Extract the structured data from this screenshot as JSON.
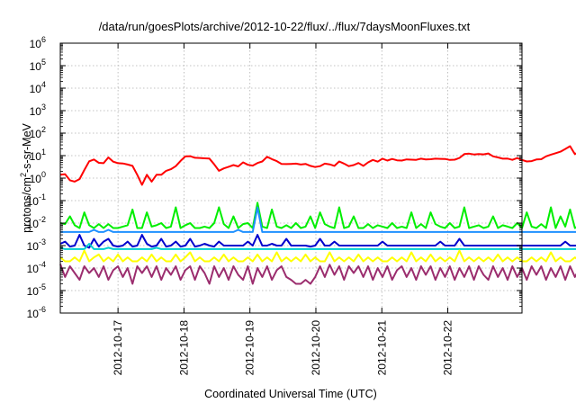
{
  "chart_data": {
    "type": "line",
    "title": "/data/run/goesPlots/archive/2012-10-22/flux/../flux/7daysMoonFluxes.txt",
    "xlabel": "Coordinated Universal Time (UTC)",
    "ylabel_parts": [
      "protons/cm",
      "2",
      "-s-sr-MeV"
    ],
    "y_scale": "log",
    "ylim": [
      1e-06,
      1000000.0
    ],
    "y_ticks": [
      {
        "base": "10",
        "exp": "-6"
      },
      {
        "base": "10",
        "exp": "-5"
      },
      {
        "base": "10",
        "exp": "-4"
      },
      {
        "base": "10",
        "exp": "-3"
      },
      {
        "base": "10",
        "exp": "-2"
      },
      {
        "base": "10",
        "exp": "-1"
      },
      {
        "base": "10",
        "exp": "0"
      },
      {
        "base": "10",
        "exp": "1"
      },
      {
        "base": "10",
        "exp": "2"
      },
      {
        "base": "10",
        "exp": "3"
      },
      {
        "base": "10",
        "exp": "4"
      },
      {
        "base": "10",
        "exp": "5"
      },
      {
        "base": "10",
        "exp": "6"
      }
    ],
    "x_range": [
      "2012-10-16 03:00",
      "2012-10-23 03:00"
    ],
    "x_ticks": [
      "2012-10-17",
      "2012-10-18",
      "2012-10-19",
      "2012-10-20",
      "2012-10-21",
      "2012-10-22"
    ],
    "grid": true,
    "legend": "none",
    "x_start": "2012-10-16 03:00",
    "x_step_hours": 1.75,
    "series": [
      {
        "color": "#ff0000",
        "values": [
          1.4,
          1.5,
          0.8,
          0.7,
          0.9,
          2.3,
          5.6,
          6.7,
          4.8,
          4.6,
          8.3,
          5.4,
          4.6,
          4.5,
          4.0,
          3.5,
          1.4,
          0.5,
          1.4,
          0.7,
          1.4,
          1.4,
          2.1,
          2.5,
          3.4,
          5.8,
          9.2,
          9.5,
          8.0,
          7.9,
          7.6,
          7.4,
          4.1,
          2.1,
          2.7,
          3.2,
          3.8,
          3.3,
          5.0,
          3.9,
          3.6,
          4.7,
          5.5,
          8.9,
          7.0,
          5.7,
          4.3,
          4.2,
          4.3,
          4.4,
          4.0,
          4.3,
          3.5,
          3.1,
          3.4,
          4.4,
          4.1,
          3.5,
          5.5,
          4.4,
          3.4,
          3.8,
          4.7,
          3.5,
          5.0,
          6.4,
          5.4,
          7.3,
          6.0,
          7.1,
          6.2,
          6.0,
          6.8,
          6.6,
          6.5,
          7.3,
          6.8,
          6.9,
          7.3,
          7.2,
          7.1,
          6.4,
          6.6,
          7.9,
          11.7,
          12.2,
          11.3,
          11.7,
          11.4,
          12.5,
          9.3,
          8.3,
          7.3,
          7.4,
          6.5,
          7.8,
          6.4,
          5.5,
          5.7,
          6.7,
          6.9,
          9.3,
          11.1,
          12.8,
          15.0,
          19.8,
          26.2,
          11.6,
          16.2,
          10.5,
          8.6,
          7.1,
          6.0,
          4.8,
          5.5,
          4.9,
          8.8,
          7.0,
          6.9,
          7.7,
          10.9,
          9.7,
          8.5,
          12.3,
          11.7,
          21.2,
          15.4,
          19.2,
          27.5,
          19.1,
          18.7,
          17.0,
          20.0,
          8.8
        ]
      },
      {
        "color": "#00ee00",
        "values": [
          0.01,
          0.009,
          0.02,
          0.008,
          0.006,
          0.03,
          0.008,
          0.006,
          0.009,
          0.006,
          0.009,
          0.006,
          0.006,
          0.007,
          0.008,
          0.04,
          0.006,
          0.006,
          0.03,
          0.007,
          0.008,
          0.01,
          0.006,
          0.007,
          0.05,
          0.006,
          0.008,
          0.01,
          0.006,
          0.006,
          0.007,
          0.006,
          0.01,
          0.05,
          0.009,
          0.006,
          0.02,
          0.006,
          0.009,
          0.01,
          0.006,
          0.08,
          0.007,
          0.006,
          0.04,
          0.007,
          0.006,
          0.008,
          0.006,
          0.01,
          0.006,
          0.007,
          0.02,
          0.006,
          0.03,
          0.009,
          0.007,
          0.006,
          0.05,
          0.006,
          0.007,
          0.02,
          0.006,
          0.006,
          0.009,
          0.006,
          0.008,
          0.007,
          0.006,
          0.01,
          0.006,
          0.007,
          0.006,
          0.03,
          0.006,
          0.009,
          0.006,
          0.03,
          0.009,
          0.007,
          0.006,
          0.01,
          0.006,
          0.007,
          0.05,
          0.006,
          0.007,
          0.008,
          0.006,
          0.007,
          0.02,
          0.006,
          0.008,
          0.007,
          0.006,
          0.01,
          0.006,
          0.03,
          0.007,
          0.006,
          0.009,
          0.006,
          0.05,
          0.006,
          0.02,
          0.007,
          0.04,
          0.006,
          0.008,
          0.006,
          0.009,
          0.006,
          0.01,
          0.006,
          0.007,
          0.009,
          0.007,
          0.009,
          0.008,
          0.03,
          0.008,
          0.006,
          0.01,
          0.008,
          0.02,
          0.006,
          0.008,
          0.009,
          0.05,
          0.007,
          0.02,
          0.01,
          0.006,
          0.04,
          0.006,
          0.02
        ]
      },
      {
        "color": "#1e90ff",
        "values": [
          0.004,
          0.004,
          0.004,
          0.004,
          0.004,
          0.004,
          0.004,
          0.005,
          0.004,
          0.004,
          0.005,
          0.004,
          0.004,
          0.004,
          0.004,
          0.004,
          0.004,
          0.004,
          0.004,
          0.004,
          0.004,
          0.004,
          0.004,
          0.004,
          0.004,
          0.004,
          0.004,
          0.004,
          0.004,
          0.004,
          0.004,
          0.004,
          0.004,
          0.004,
          0.004,
          0.004,
          0.004,
          0.005,
          0.004,
          0.004,
          0.004,
          0.05,
          0.004,
          0.004,
          0.004,
          0.004,
          0.004,
          0.004,
          0.004,
          0.004,
          0.004,
          0.004,
          0.004,
          0.004,
          0.004,
          0.004,
          0.004,
          0.004,
          0.004,
          0.004,
          0.004,
          0.004,
          0.004,
          0.004,
          0.004,
          0.004,
          0.004,
          0.004,
          0.004,
          0.004,
          0.004,
          0.004,
          0.004,
          0.004,
          0.004,
          0.004,
          0.004,
          0.004,
          0.004,
          0.004,
          0.004,
          0.004,
          0.004,
          0.004,
          0.004,
          0.004,
          0.004,
          0.004,
          0.004,
          0.004,
          0.004,
          0.004,
          0.004,
          0.004,
          0.004,
          0.004,
          0.004,
          0.004,
          0.004,
          0.004,
          0.004,
          0.004,
          0.004,
          0.004,
          0.004,
          0.004,
          0.004,
          0.004,
          0.004,
          0.004,
          0.004,
          0.004,
          0.004,
          0.004,
          0.004,
          0.005,
          0.004,
          0.004,
          0.004,
          0.004,
          0.004,
          0.004,
          0.004,
          0.004,
          0.004,
          0.004,
          0.004,
          0.004,
          0.004,
          0.004,
          0.004,
          0.004,
          0.004,
          0.004,
          0.004,
          0.004
        ]
      },
      {
        "color": "#0000cd",
        "values": [
          0.0012,
          0.0015,
          0.0009,
          0.001,
          0.003,
          0.001,
          0.0008,
          0.002,
          0.0009,
          0.0015,
          0.002,
          0.001,
          0.0009,
          0.001,
          0.0015,
          0.0009,
          0.001,
          0.003,
          0.0012,
          0.0009,
          0.001,
          0.002,
          0.0009,
          0.001,
          0.0015,
          0.0009,
          0.001,
          0.002,
          0.0009,
          0.001,
          0.0012,
          0.001,
          0.0009,
          0.0015,
          0.001,
          0.001,
          0.001,
          0.001,
          0.001,
          0.0015,
          0.001,
          0.003,
          0.001,
          0.001,
          0.0012,
          0.001,
          0.001,
          0.002,
          0.001,
          0.001,
          0.001,
          0.001,
          0.0009,
          0.001,
          0.002,
          0.001,
          0.001,
          0.0015,
          0.001,
          0.001,
          0.001,
          0.001,
          0.001,
          0.001,
          0.001,
          0.001,
          0.001,
          0.0015,
          0.001,
          0.001,
          0.001,
          0.001,
          0.001,
          0.001,
          0.001,
          0.001,
          0.001,
          0.001,
          0.001,
          0.0015,
          0.001,
          0.001,
          0.001,
          0.002,
          0.001,
          0.001,
          0.001,
          0.001,
          0.001,
          0.001,
          0.001,
          0.001,
          0.001,
          0.001,
          0.001,
          0.001,
          0.001,
          0.001,
          0.001,
          0.001,
          0.001,
          0.001,
          0.001,
          0.001,
          0.001,
          0.0015,
          0.001,
          0.001,
          0.001,
          0.001,
          0.001,
          0.001,
          0.003,
          0.001,
          0.004,
          0.0015,
          0.002,
          0.001,
          0.001,
          0.001,
          0.0012,
          0.002,
          0.0015,
          0.004,
          0.001,
          0.0012,
          0.001,
          0.002,
          0.002,
          0.0015,
          0.003,
          0.0025,
          0.0015,
          0.001,
          0.0012,
          0.001
        ]
      },
      {
        "color": "#00ced1",
        "values": [
          0.0008,
          0.0007,
          0.0007,
          0.0007,
          0.0007,
          0.0007,
          0.0012,
          0.0007,
          0.0007,
          0.0007,
          0.0008,
          0.0007,
          0.0007,
          0.0007,
          0.0007,
          0.0007,
          0.0007,
          0.0007,
          0.0007,
          0.0007,
          0.0008,
          0.0007,
          0.0007,
          0.0007,
          0.0007,
          0.0007,
          0.0007,
          0.0007,
          0.0007,
          0.0007,
          0.0007,
          0.0007,
          0.0007,
          0.0007,
          0.0007,
          0.0007,
          0.0007,
          0.0007,
          0.0007,
          0.0007,
          0.0007,
          0.0007,
          0.0007,
          0.0007,
          0.0007,
          0.0007,
          0.0007,
          0.0007,
          0.0007,
          0.0007,
          0.0007,
          0.0007,
          0.0007,
          0.0007,
          0.0007,
          0.0007,
          0.0007,
          0.0007,
          0.0007,
          0.0007,
          0.0007,
          0.0007,
          0.0007,
          0.0007,
          0.0007,
          0.0007,
          0.0007,
          0.0007,
          0.0007,
          0.0007,
          0.0007,
          0.0007,
          0.0007,
          0.0007,
          0.0007,
          0.0007,
          0.0007,
          0.0007,
          0.0007,
          0.0007,
          0.0007,
          0.0007,
          0.0007,
          0.0007,
          0.0007,
          0.0007,
          0.0007,
          0.0007,
          0.0007,
          0.0007,
          0.0007,
          0.0007,
          0.0007,
          0.0007,
          0.0007,
          0.0007,
          0.0007,
          0.0007,
          0.0007,
          0.0007,
          0.0007,
          0.0007,
          0.0007,
          0.0007,
          0.0007,
          0.0007,
          0.0007,
          0.0007,
          0.0007,
          0.0007,
          0.0007,
          0.0007,
          0.0007,
          0.0007,
          0.0007,
          0.0007,
          0.0007,
          0.0007,
          0.0007,
          0.0008,
          0.0007,
          0.0007,
          0.0008,
          0.0007,
          0.0007,
          0.0009,
          0.0007,
          0.0007,
          0.0008,
          0.0007,
          0.0007,
          0.0007,
          0.0007,
          0.0007,
          0.0007,
          0.0008
        ]
      },
      {
        "color": "#ffff00",
        "values": [
          0.0003,
          0.0002,
          0.0002,
          0.0003,
          0.0002,
          0.0006,
          0.0002,
          0.0003,
          0.0004,
          0.0002,
          0.0003,
          0.0002,
          0.0004,
          0.0002,
          0.0003,
          0.0002,
          0.0002,
          0.0003,
          0.0002,
          0.0004,
          0.0002,
          0.0003,
          0.0002,
          0.0002,
          0.0004,
          0.0002,
          0.0003,
          0.0005,
          0.0002,
          0.0003,
          0.0002,
          0.0002,
          0.0003,
          0.0002,
          0.0004,
          0.0002,
          0.0003,
          0.0002,
          0.0002,
          0.0003,
          0.0002,
          0.0004,
          0.0002,
          0.0003,
          0.0002,
          0.0005,
          0.0002,
          0.0003,
          0.0002,
          0.0003,
          0.0002,
          0.0004,
          0.0002,
          0.0003,
          0.0002,
          0.0002,
          0.0005,
          0.0002,
          0.0003,
          0.0002,
          0.0003,
          0.0002,
          0.0004,
          0.0002,
          0.0003,
          0.0002,
          0.0003,
          0.0002,
          0.0002,
          0.0003,
          0.0002,
          0.0003,
          0.0002,
          0.0005,
          0.0002,
          0.0003,
          0.0002,
          0.0004,
          0.0002,
          0.0003,
          0.0002,
          0.0003,
          0.0002,
          0.0006,
          0.0002,
          0.0003,
          0.0002,
          0.0003,
          0.0002,
          0.0003,
          0.0002,
          0.0004,
          0.0002,
          0.0003,
          0.0002,
          0.0003,
          0.0002,
          0.0002,
          0.0003,
          0.0002,
          0.0003,
          0.0002,
          0.0005,
          0.0002,
          0.0003,
          0.0002,
          0.0002,
          0.0003,
          0.0002,
          0.0003,
          0.0002,
          0.0004,
          0.0002,
          0.0003,
          0.0002,
          0.0003,
          0.0002,
          0.0004,
          0.0002,
          0.0003,
          0.0002,
          0.0006,
          0.0002,
          0.0003,
          0.0002,
          0.0003,
          0.0002,
          0.0004,
          0.0002,
          0.0003,
          0.0002,
          0.0003,
          0.0002,
          0.0002,
          0.0003,
          0.0002
        ]
      },
      {
        "color": "#9b2d6e",
        "values": [
          0.00015,
          4e-05,
          0.00012,
          6e-05,
          3e-05,
          0.00012,
          6e-05,
          0.0001,
          4e-05,
          0.00012,
          3e-05,
          8e-05,
          0.00012,
          4e-05,
          0.0001,
          2e-05,
          0.00012,
          6e-05,
          0.00012,
          4e-05,
          0.00012,
          3e-05,
          0.0001,
          5e-05,
          0.00012,
          3e-05,
          8e-05,
          0.00012,
          3e-05,
          0.00012,
          6e-05,
          2e-05,
          0.00012,
          4e-05,
          0.0001,
          3e-05,
          0.00012,
          5e-05,
          3e-05,
          0.00012,
          2e-05,
          0.0001,
          4e-05,
          0.00012,
          3e-05,
          8e-05,
          0.00012,
          4e-05,
          3e-05,
          2e-05,
          2e-05,
          3e-05,
          2e-05,
          4e-05,
          0.00012,
          4e-05,
          0.00014,
          5e-05,
          0.00012,
          3e-05,
          0.00012,
          6e-05,
          0.00012,
          4e-05,
          0.00012,
          3e-05,
          0.0001,
          4e-05,
          0.00012,
          3e-05,
          8e-05,
          0.00012,
          4e-05,
          0.0001,
          3e-05,
          0.00012,
          5e-05,
          0.00012,
          3e-05,
          0.0001,
          4e-05,
          0.00012,
          3e-05,
          0.0001,
          4e-05,
          0.00012,
          3e-05,
          0.00012,
          5e-05,
          3e-05,
          0.00012,
          4e-05,
          0.0001,
          3e-05,
          0.00012,
          4e-05,
          0.0001,
          3e-05,
          0.00012,
          5e-05,
          0.00012,
          3e-05,
          0.0001,
          4e-05,
          0.00012,
          3e-05,
          0.00012,
          4e-05,
          0.0001,
          3e-05,
          0.00012,
          5e-05,
          0.00012,
          3e-05,
          0.0001,
          4e-05,
          0.00012,
          3e-05,
          0.0001,
          4e-05,
          0.00012,
          3e-05,
          0.00015,
          4e-05,
          0.00012,
          3e-05,
          5e-05,
          0.00012,
          3e-05,
          0.0001,
          4e-05,
          0.00018,
          4e-05,
          0.00015,
          3e-05,
          4e-05
        ]
      }
    ]
  }
}
